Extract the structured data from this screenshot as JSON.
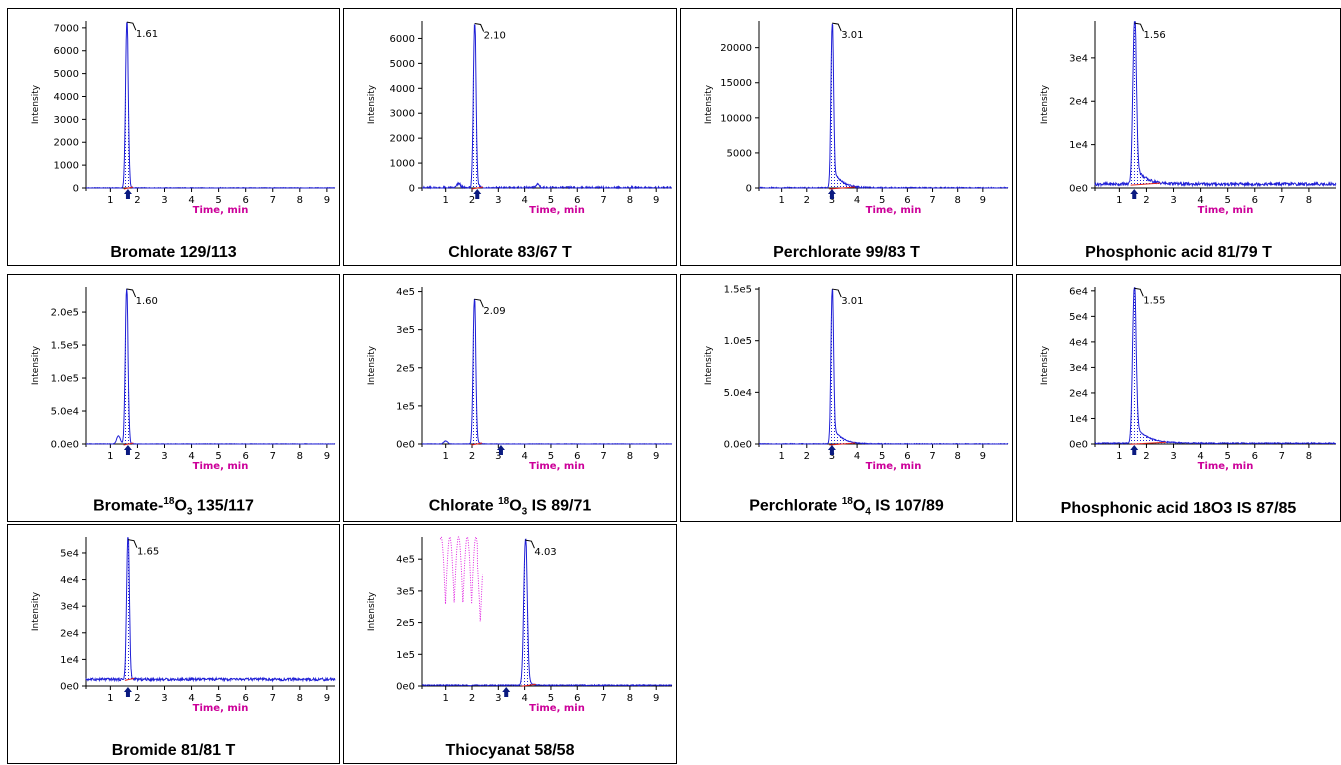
{
  "colors": {
    "trace": "#1f1fd6",
    "baseline": "#e0201a",
    "xlabel": "#cc0099",
    "marker": "#0a1a80",
    "interference": "#e020e0"
  },
  "chart_data": [
    {
      "type": "line",
      "caption_parts": [
        {
          "t": "Bromate 129/113"
        }
      ],
      "ylabel": "Intensity",
      "xlabel": "Time, min",
      "yticks": [
        {
          "v": 0,
          "l": "0"
        },
        {
          "v": 1000,
          "l": "1000"
        },
        {
          "v": 2000,
          "l": "2000"
        },
        {
          "v": 3000,
          "l": "3000"
        },
        {
          "v": 4000,
          "l": "4000"
        },
        {
          "v": 5000,
          "l": "5000"
        },
        {
          "v": 6000,
          "l": "6000"
        },
        {
          "v": 7000,
          "l": "7000"
        }
      ],
      "ymax": 7300,
      "xticks": [
        1,
        2,
        3,
        4,
        5,
        6,
        7,
        8,
        9
      ],
      "xlim": [
        0.1,
        9.3
      ],
      "peak": {
        "rt": 1.61,
        "label": "1.61",
        "height": 7250,
        "width": 0.07,
        "tail": 0.04
      },
      "noise": 20,
      "baseline_level": 0,
      "marker": 1.65
    },
    {
      "type": "line",
      "caption_parts": [
        {
          "t": "Chlorate 83/67 T"
        }
      ],
      "ylabel": "Intensity",
      "xlabel": "Time, min",
      "yticks": [
        {
          "v": 0,
          "l": "0"
        },
        {
          "v": 1000,
          "l": "1000"
        },
        {
          "v": 2000,
          "l": "2000"
        },
        {
          "v": 3000,
          "l": "3000"
        },
        {
          "v": 4000,
          "l": "4000"
        },
        {
          "v": 5000,
          "l": "5000"
        },
        {
          "v": 6000,
          "l": "6000"
        }
      ],
      "ymax": 6700,
      "xticks": [
        1,
        2,
        3,
        4,
        5,
        6,
        7,
        8,
        9
      ],
      "xlim": [
        0.1,
        9.6
      ],
      "peak": {
        "rt": 2.1,
        "label": "2.10",
        "height": 6600,
        "width": 0.07,
        "tail": 0.08
      },
      "noise": 60,
      "baseline_level": 0,
      "marker": 2.2,
      "bumps": [
        [
          1.5,
          180
        ],
        [
          4.5,
          150
        ]
      ]
    },
    {
      "type": "line",
      "caption_parts": [
        {
          "t": "Perchlorate 99/83 T"
        }
      ],
      "ylabel": "Intensity",
      "xlabel": "Time, min",
      "yticks": [
        {
          "v": 0,
          "l": "0"
        },
        {
          "v": 5000,
          "l": "5000"
        },
        {
          "v": 10000,
          "l": "10000"
        },
        {
          "v": 15000,
          "l": "15000"
        },
        {
          "v": 20000,
          "l": "20000"
        }
      ],
      "ymax": 23800,
      "xticks": [
        1,
        2,
        3,
        4,
        5,
        6,
        7,
        8,
        9
      ],
      "xlim": [
        0.1,
        10.0
      ],
      "peak": {
        "rt": 3.01,
        "label": "3.01",
        "height": 23500,
        "width": 0.07,
        "tail": 0.35
      },
      "noise": 120,
      "baseline_level": 0,
      "marker": 3.0
    },
    {
      "type": "line",
      "caption_parts": [
        {
          "t": "Phosphonic acid 81/79 T"
        }
      ],
      "ylabel": "Intensity",
      "xlabel": "Time, min",
      "yticks": [
        {
          "v": 0,
          "l": "0e0"
        },
        {
          "v": 10000,
          "l": "1e4"
        },
        {
          "v": 20000,
          "l": "2e4"
        },
        {
          "v": 30000,
          "l": "3e4"
        }
      ],
      "ymax": 38500,
      "xticks": [
        1,
        2,
        3,
        4,
        5,
        6,
        7,
        8
      ],
      "xlim": [
        0.1,
        9.0
      ],
      "peak": {
        "rt": 1.56,
        "label": "1.56",
        "height": 38000,
        "width": 0.09,
        "tail": 0.35
      },
      "noise": 350,
      "baseline_level": 900,
      "marker": 1.55
    },
    {
      "type": "line",
      "caption_parts": [
        {
          "t": "Bromate-"
        },
        {
          "t": "18",
          "s": "sup"
        },
        {
          "t": "O"
        },
        {
          "t": "3",
          "s": "sub"
        },
        {
          "t": " 135/117"
        }
      ],
      "ylabel": "Intensity",
      "xlabel": "Time, min",
      "yticks": [
        {
          "v": 0,
          "l": "0.0e0"
        },
        {
          "v": 50000,
          "l": "5.0e4"
        },
        {
          "v": 100000,
          "l": "1.0e5"
        },
        {
          "v": 150000,
          "l": "1.5e5"
        },
        {
          "v": 200000,
          "l": "2.0e5"
        }
      ],
      "ymax": 238000,
      "xticks": [
        1,
        2,
        3,
        4,
        5,
        6,
        7,
        8,
        9
      ],
      "xlim": [
        0.1,
        9.3
      ],
      "peak": {
        "rt": 1.6,
        "label": "1.60",
        "height": 235000,
        "width": 0.07,
        "tail": 0.05
      },
      "noise": 500,
      "baseline_level": 0,
      "marker": 1.65,
      "bumps": [
        [
          1.3,
          12000
        ]
      ]
    },
    {
      "type": "line",
      "caption_parts": [
        {
          "t": "Chlorate "
        },
        {
          "t": "18",
          "s": "sup"
        },
        {
          "t": "O"
        },
        {
          "t": "3",
          "s": "sub"
        },
        {
          "t": " IS 89/71"
        }
      ],
      "ylabel": "Intensity",
      "xlabel": "Time, min",
      "yticks": [
        {
          "v": 0,
          "l": "0e0"
        },
        {
          "v": 100000,
          "l": "1e5"
        },
        {
          "v": 200000,
          "l": "2e5"
        },
        {
          "v": 300000,
          "l": "3e5"
        },
        {
          "v": 400000,
          "l": "4e5"
        }
      ],
      "ymax": 412000,
      "xticks": [
        1,
        2,
        3,
        4,
        5,
        6,
        7,
        8,
        9
      ],
      "xlim": [
        0.1,
        9.6
      ],
      "peak": {
        "rt": 2.09,
        "label": "2.09",
        "height": 380000,
        "width": 0.07,
        "tail": 0.07
      },
      "noise": 800,
      "baseline_level": 0,
      "marker": 3.1,
      "bumps": [
        [
          1.0,
          8000
        ]
      ]
    },
    {
      "type": "line",
      "caption_parts": [
        {
          "t": "Perchlorate "
        },
        {
          "t": "18",
          "s": "sup"
        },
        {
          "t": "O"
        },
        {
          "t": "4",
          "s": "sub"
        },
        {
          "t": " IS 107/89"
        }
      ],
      "ylabel": "Intensity",
      "xlabel": "Time, min",
      "yticks": [
        {
          "v": 0,
          "l": "0.0e0"
        },
        {
          "v": 50000,
          "l": "5.0e4"
        },
        {
          "v": 100000,
          "l": "1.0e5"
        },
        {
          "v": 150000,
          "l": "1.5e5"
        }
      ],
      "ymax": 152000,
      "xticks": [
        1,
        2,
        3,
        4,
        5,
        6,
        7,
        8,
        9
      ],
      "xlim": [
        0.1,
        10.0
      ],
      "peak": {
        "rt": 3.01,
        "label": "3.01",
        "height": 150000,
        "width": 0.07,
        "tail": 0.35
      },
      "noise": 500,
      "baseline_level": 0,
      "marker": 3.0
    },
    {
      "type": "line",
      "caption_parts": [
        {
          "t": "Phosphonic acid 18O3 IS 87/85"
        }
      ],
      "ylabel": "Intensity",
      "xlabel": "Time, min",
      "yticks": [
        {
          "v": 0,
          "l": "0e0"
        },
        {
          "v": 10000,
          "l": "1e4"
        },
        {
          "v": 20000,
          "l": "2e4"
        },
        {
          "v": 30000,
          "l": "3e4"
        },
        {
          "v": 40000,
          "l": "4e4"
        },
        {
          "v": 50000,
          "l": "5e4"
        },
        {
          "v": 60000,
          "l": "6e4"
        }
      ],
      "ymax": 61500,
      "xticks": [
        1,
        2,
        3,
        4,
        5,
        6,
        7,
        8
      ],
      "xlim": [
        0.1,
        9.0
      ],
      "peak": {
        "rt": 1.55,
        "label": "1.55",
        "height": 61000,
        "width": 0.09,
        "tail": 0.45
      },
      "noise": 200,
      "baseline_level": 300,
      "marker": 1.55
    },
    {
      "type": "line",
      "caption_parts": [
        {
          "t": "Bromide 81/81 T"
        }
      ],
      "ylabel": "Intensity",
      "xlabel": "Time, min",
      "yticks": [
        {
          "v": 0,
          "l": "0e0"
        },
        {
          "v": 10000,
          "l": "1e4"
        },
        {
          "v": 20000,
          "l": "2e4"
        },
        {
          "v": 30000,
          "l": "3e4"
        },
        {
          "v": 40000,
          "l": "4e4"
        },
        {
          "v": 50000,
          "l": "5e4"
        }
      ],
      "ymax": 56000,
      "xticks": [
        1,
        2,
        3,
        4,
        5,
        6,
        7,
        8,
        9
      ],
      "xlim": [
        0.1,
        9.3
      ],
      "peak": {
        "rt": 1.65,
        "label": "1.65",
        "height": 55000,
        "width": 0.07,
        "tail": 0.04
      },
      "noise": 500,
      "baseline_level": 2500,
      "marker": 1.65
    },
    {
      "type": "line",
      "caption_parts": [
        {
          "t": "Thiocyanat 58/58"
        }
      ],
      "ylabel": "Intensity",
      "xlabel": "Time, min",
      "yticks": [
        {
          "v": 0,
          "l": "0e0"
        },
        {
          "v": 100000,
          "l": "1e5"
        },
        {
          "v": 200000,
          "l": "2e5"
        },
        {
          "v": 300000,
          "l": "3e5"
        },
        {
          "v": 400000,
          "l": "4e5"
        }
      ],
      "ymax": 470000,
      "xticks": [
        1,
        2,
        3,
        4,
        5,
        6,
        7,
        8,
        9
      ],
      "xlim": [
        0.1,
        9.6
      ],
      "peak": {
        "rt": 4.03,
        "label": "4.03",
        "height": 460000,
        "width": 0.09,
        "tail": 0.1
      },
      "noise": 1500,
      "baseline_level": 2500,
      "marker": 3.3,
      "interference": true
    }
  ]
}
